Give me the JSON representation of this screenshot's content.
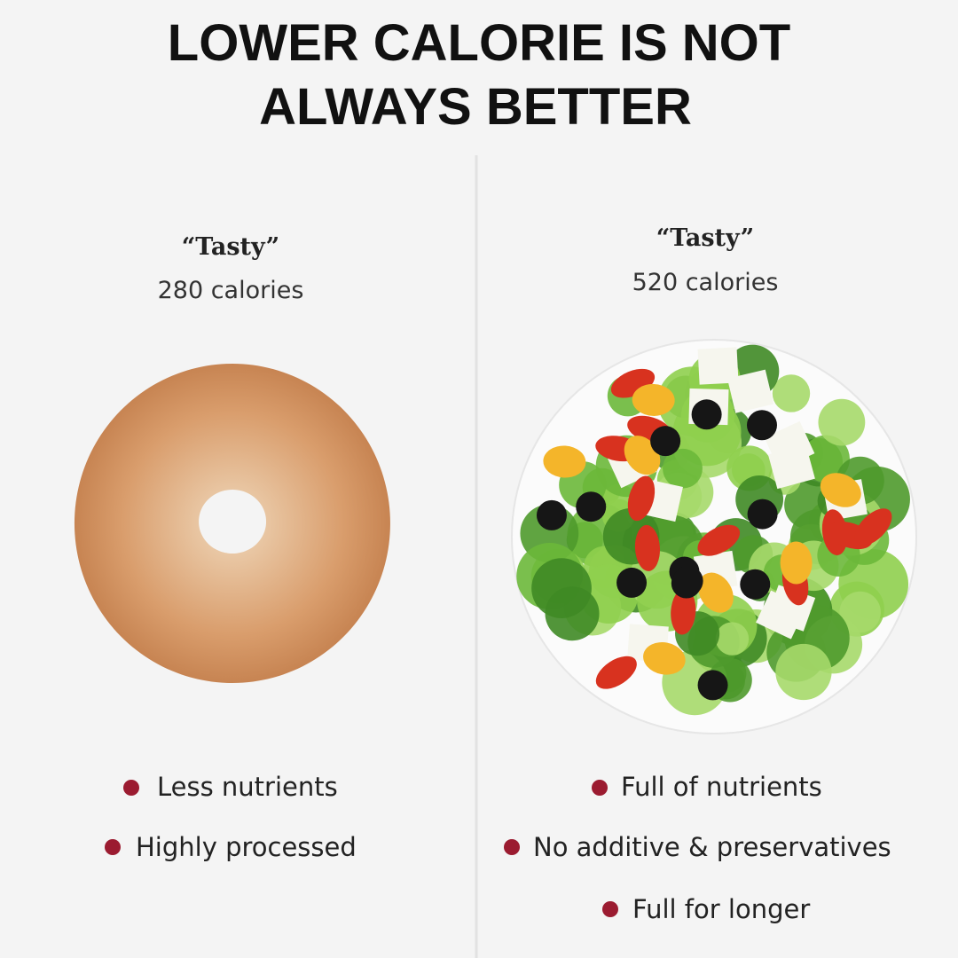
{
  "title": [
    "LOWER CALORIE IS NOT",
    "ALWAYS BETTER"
  ],
  "columns": [
    {
      "label": "“Tasty”",
      "calories": "280 calories",
      "points": [
        "Less nutrients",
        "Highly processed"
      ]
    },
    {
      "label": "“Tasty”",
      "calories": "520 calories",
      "points": [
        "Full of nutrients",
        "No additive & preservatives",
        "Full for longer"
      ]
    }
  ]
}
